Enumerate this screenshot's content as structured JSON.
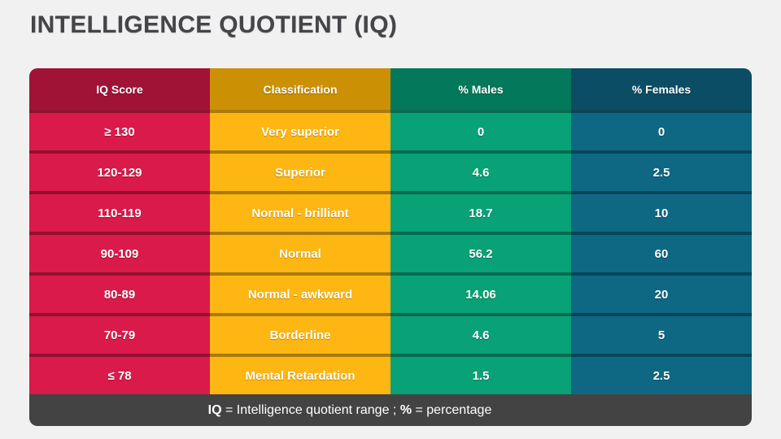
{
  "page": {
    "title": "INTELLIGENCE QUOTIENT (IQ)"
  },
  "colors": {
    "page_background": "#F1F1F2",
    "title_text": "#454549",
    "header_red": "#A11237",
    "header_gold": "#CB9004",
    "header_green": "#03785A",
    "header_teal": "#0B4D64",
    "row_red": "#DA1A4A",
    "row_yellow": "#FEB712",
    "row_green": "#09A176",
    "row_teal": "#0E6883",
    "footer_gray": "#434343",
    "cell_text": "#FFFFFF"
  },
  "table": {
    "columns": [
      {
        "label": "IQ Score"
      },
      {
        "label": "Classification"
      },
      {
        "label": "% Males"
      },
      {
        "label": "% Females"
      }
    ],
    "rows": [
      [
        "≥ 130",
        "Very superior",
        "0",
        "0"
      ],
      [
        "120-129",
        "Superior",
        "4.6",
        "2.5"
      ],
      [
        "110-119",
        "Normal - brilliant",
        "18.7",
        "10"
      ],
      [
        "90-109",
        "Normal",
        "56.2",
        "60"
      ],
      [
        "80-89",
        "Normal - awkward",
        "14.06",
        "20"
      ],
      [
        "70-79",
        "Borderline",
        "4.6",
        "5"
      ],
      [
        "≤ 78",
        "Mental Retardation",
        "1.5",
        "2.5"
      ]
    ],
    "footnote": {
      "term_iq": "IQ",
      "text_iq": " = Intelligence quotient range ; ",
      "term_pct": "%",
      "text_pct": " = percentage"
    }
  }
}
